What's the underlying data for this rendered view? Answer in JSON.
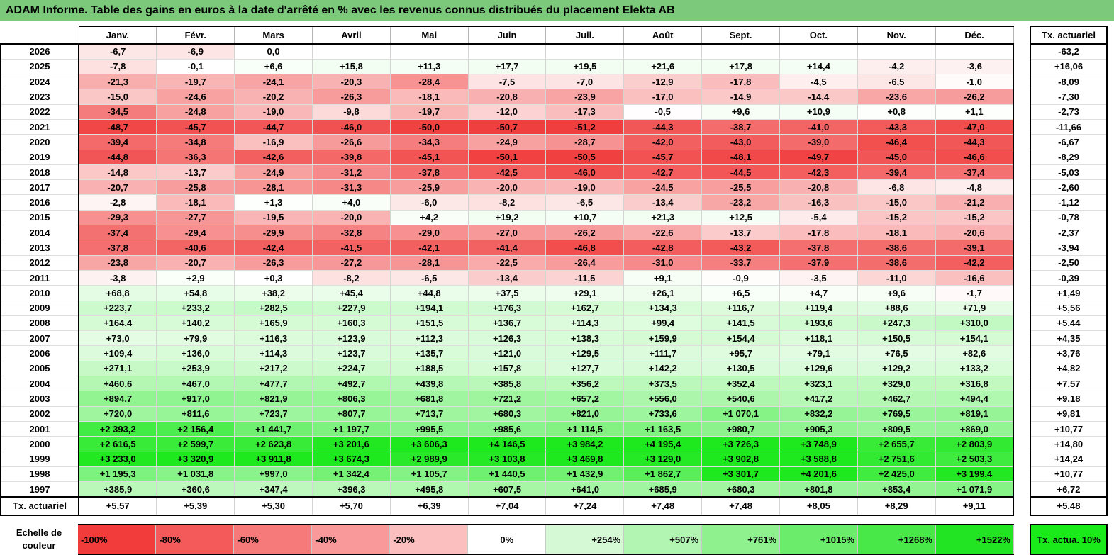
{
  "title": "ADAM Informe. Table des gains en euros à la date d'arrêté en % avec les revenus connus distribués du placement Elekta AB",
  "months": [
    "Janv.",
    "Févr.",
    "Mars",
    "Avril",
    "Mai",
    "Juin",
    "Juil.",
    "Août",
    "Sept.",
    "Oct.",
    "Nov.",
    "Déc."
  ],
  "side_header": "Tx. actuariel",
  "rows": [
    {
      "year": "2026",
      "values": [
        "-6,7",
        "-6,9",
        "0,0",
        "",
        "",
        "",
        "",
        "",
        "",
        "",
        "",
        ""
      ],
      "actuarial": "-63,2"
    },
    {
      "year": "2025",
      "values": [
        "-7,8",
        "-0,1",
        "+6,6",
        "+15,8",
        "+11,3",
        "+17,7",
        "+19,5",
        "+21,6",
        "+17,8",
        "+14,4",
        "-4,2",
        "-3,6"
      ],
      "actuarial": "+16,06"
    },
    {
      "year": "2024",
      "values": [
        "-21,3",
        "-19,7",
        "-24,1",
        "-20,3",
        "-28,4",
        "-7,5",
        "-7,0",
        "-12,9",
        "-17,8",
        "-4,5",
        "-6,5",
        "-1,0"
      ],
      "actuarial": "-8,09"
    },
    {
      "year": "2023",
      "values": [
        "-15,0",
        "-24,6",
        "-20,2",
        "-26,3",
        "-18,1",
        "-20,8",
        "-23,9",
        "-17,0",
        "-14,9",
        "-14,4",
        "-23,6",
        "-26,2"
      ],
      "actuarial": "-7,30"
    },
    {
      "year": "2022",
      "values": [
        "-34,5",
        "-24,8",
        "-19,0",
        "-9,8",
        "-19,7",
        "-12,0",
        "-17,3",
        "-0,5",
        "+9,6",
        "+10,9",
        "+0,8",
        "+1,1"
      ],
      "actuarial": "-2,73"
    },
    {
      "year": "2021",
      "values": [
        "-48,7",
        "-45,7",
        "-44,7",
        "-46,0",
        "-50,0",
        "-50,7",
        "-51,2",
        "-44,3",
        "-38,7",
        "-41,0",
        "-43,3",
        "-47,0"
      ],
      "actuarial": "-11,66"
    },
    {
      "year": "2020",
      "values": [
        "-39,4",
        "-34,8",
        "-16,9",
        "-26,6",
        "-34,3",
        "-24,9",
        "-28,7",
        "-42,0",
        "-43,0",
        "-39,0",
        "-46,4",
        "-44,3"
      ],
      "actuarial": "-6,67"
    },
    {
      "year": "2019",
      "values": [
        "-44,8",
        "-36,3",
        "-42,6",
        "-39,8",
        "-45,1",
        "-50,1",
        "-50,5",
        "-45,7",
        "-48,1",
        "-49,7",
        "-45,0",
        "-46,6"
      ],
      "actuarial": "-8,29"
    },
    {
      "year": "2018",
      "values": [
        "-14,8",
        "-13,7",
        "-24,9",
        "-31,2",
        "-37,8",
        "-42,5",
        "-46,0",
        "-42,7",
        "-44,5",
        "-42,3",
        "-39,4",
        "-37,4"
      ],
      "actuarial": "-5,03"
    },
    {
      "year": "2017",
      "values": [
        "-20,7",
        "-25,8",
        "-28,1",
        "-31,3",
        "-25,9",
        "-20,0",
        "-19,0",
        "-24,5",
        "-25,5",
        "-20,8",
        "-6,8",
        "-4,8"
      ],
      "actuarial": "-2,60"
    },
    {
      "year": "2016",
      "values": [
        "-2,8",
        "-18,1",
        "+1,3",
        "+4,0",
        "-6,0",
        "-8,2",
        "-6,5",
        "-13,4",
        "-23,2",
        "-16,3",
        "-15,0",
        "-21,2"
      ],
      "actuarial": "-1,12"
    },
    {
      "year": "2015",
      "values": [
        "-29,3",
        "-27,7",
        "-19,5",
        "-20,0",
        "+4,2",
        "+19,2",
        "+10,7",
        "+21,3",
        "+12,5",
        "-5,4",
        "-15,2",
        "-15,2"
      ],
      "actuarial": "-0,78"
    },
    {
      "year": "2014",
      "values": [
        "-37,4",
        "-29,4",
        "-29,9",
        "-32,8",
        "-29,0",
        "-27,0",
        "-26,2",
        "-22,6",
        "-13,7",
        "-17,8",
        "-18,1",
        "-20,6"
      ],
      "actuarial": "-2,37"
    },
    {
      "year": "2013",
      "values": [
        "-37,8",
        "-40,6",
        "-42,4",
        "-41,5",
        "-42,1",
        "-41,4",
        "-46,8",
        "-42,8",
        "-43,2",
        "-37,8",
        "-38,6",
        "-39,1"
      ],
      "actuarial": "-3,94"
    },
    {
      "year": "2012",
      "values": [
        "-23,8",
        "-20,7",
        "-26,3",
        "-27,2",
        "-28,1",
        "-22,5",
        "-26,4",
        "-31,0",
        "-33,7",
        "-37,9",
        "-38,6",
        "-42,2"
      ],
      "actuarial": "-2,50"
    },
    {
      "year": "2011",
      "values": [
        "-3,8",
        "+2,9",
        "+0,3",
        "-8,2",
        "-6,5",
        "-13,4",
        "-11,5",
        "+9,1",
        "-0,9",
        "-3,5",
        "-11,0",
        "-16,6"
      ],
      "actuarial": "-0,39"
    },
    {
      "year": "2010",
      "values": [
        "+68,8",
        "+54,8",
        "+38,2",
        "+45,4",
        "+44,8",
        "+37,5",
        "+29,1",
        "+26,1",
        "+6,5",
        "+4,7",
        "+9,6",
        "-1,7"
      ],
      "actuarial": "+1,49"
    },
    {
      "year": "2009",
      "values": [
        "+223,7",
        "+233,2",
        "+282,5",
        "+227,9",
        "+194,1",
        "+176,3",
        "+162,7",
        "+134,3",
        "+116,7",
        "+119,4",
        "+88,6",
        "+71,9"
      ],
      "actuarial": "+5,56"
    },
    {
      "year": "2008",
      "values": [
        "+164,4",
        "+140,2",
        "+165,9",
        "+160,3",
        "+151,5",
        "+136,7",
        "+114,3",
        "+99,4",
        "+141,5",
        "+193,6",
        "+247,3",
        "+310,0"
      ],
      "actuarial": "+5,44"
    },
    {
      "year": "2007",
      "values": [
        "+73,0",
        "+79,9",
        "+116,3",
        "+123,9",
        "+112,3",
        "+126,3",
        "+138,3",
        "+159,9",
        "+154,4",
        "+118,1",
        "+150,5",
        "+154,1"
      ],
      "actuarial": "+4,35"
    },
    {
      "year": "2006",
      "values": [
        "+109,4",
        "+136,0",
        "+114,3",
        "+123,7",
        "+135,7",
        "+121,0",
        "+129,5",
        "+111,7",
        "+95,7",
        "+79,1",
        "+76,5",
        "+82,6"
      ],
      "actuarial": "+3,76"
    },
    {
      "year": "2005",
      "values": [
        "+271,1",
        "+253,9",
        "+217,2",
        "+224,7",
        "+188,5",
        "+157,8",
        "+127,7",
        "+142,2",
        "+130,5",
        "+129,6",
        "+129,2",
        "+133,2"
      ],
      "actuarial": "+4,82"
    },
    {
      "year": "2004",
      "values": [
        "+460,6",
        "+467,0",
        "+477,7",
        "+492,7",
        "+439,8",
        "+385,8",
        "+356,2",
        "+373,5",
        "+352,4",
        "+323,1",
        "+329,0",
        "+316,8"
      ],
      "actuarial": "+7,57"
    },
    {
      "year": "2003",
      "values": [
        "+894,7",
        "+917,0",
        "+821,9",
        "+806,3",
        "+681,8",
        "+721,2",
        "+657,2",
        "+556,0",
        "+540,6",
        "+417,2",
        "+462,7",
        "+494,4"
      ],
      "actuarial": "+9,18"
    },
    {
      "year": "2002",
      "values": [
        "+720,0",
        "+811,6",
        "+723,7",
        "+807,7",
        "+713,7",
        "+680,3",
        "+821,0",
        "+733,6",
        "+1 070,1",
        "+832,2",
        "+769,5",
        "+819,1"
      ],
      "actuarial": "+9,81"
    },
    {
      "year": "2001",
      "values": [
        "+2 393,2",
        "+2 156,4",
        "+1 441,7",
        "+1 197,7",
        "+995,5",
        "+985,6",
        "+1 114,5",
        "+1 163,5",
        "+980,7",
        "+905,3",
        "+809,5",
        "+869,0"
      ],
      "actuarial": "+10,77"
    },
    {
      "year": "2000",
      "values": [
        "+2 616,5",
        "+2 599,7",
        "+2 623,8",
        "+3 201,6",
        "+3 606,3",
        "+4 146,5",
        "+3 984,2",
        "+4 195,4",
        "+3 726,3",
        "+3 748,9",
        "+2 655,7",
        "+2 803,9"
      ],
      "actuarial": "+14,80"
    },
    {
      "year": "1999",
      "values": [
        "+3 233,0",
        "+3 320,9",
        "+3 911,8",
        "+3 674,3",
        "+2 989,9",
        "+3 103,8",
        "+3 469,8",
        "+3 129,0",
        "+3 902,8",
        "+3 588,8",
        "+2 751,6",
        "+2 503,3"
      ],
      "actuarial": "+14,24"
    },
    {
      "year": "1998",
      "values": [
        "+1 195,3",
        "+1 031,8",
        "+997,0",
        "+1 342,4",
        "+1 105,7",
        "+1 440,5",
        "+1 432,9",
        "+1 862,7",
        "+3 301,7",
        "+4 201,6",
        "+2 425,0",
        "+3 199,4"
      ],
      "actuarial": "+10,77"
    },
    {
      "year": "1997",
      "values": [
        "+385,9",
        "+360,6",
        "+347,4",
        "+396,3",
        "+495,8",
        "+607,5",
        "+641,0",
        "+685,9",
        "+680,3",
        "+801,8",
        "+853,4",
        "+1 071,9"
      ],
      "actuarial": "+6,72"
    }
  ],
  "summary": {
    "label": "Tx. actuariel",
    "values": [
      "+5,57",
      "+5,39",
      "+5,30",
      "+5,70",
      "+6,39",
      "+7,04",
      "+7,24",
      "+7,48",
      "+7,48",
      "+8,05",
      "+8,29",
      "+9,11"
    ],
    "actuarial": "+5,48"
  },
  "scale": {
    "label": "Echelle de couleur",
    "items": [
      "-100%",
      "-80%",
      "-60%",
      "-40%",
      "-20%",
      "0%",
      "+254%",
      "+507%",
      "+761%",
      "+1015%",
      "+1268%",
      "+1522%"
    ],
    "colors": [
      "#f23b3b",
      "#f45a5a",
      "#f77a7a",
      "#f99999",
      "#fcbfbf",
      "#ffffff",
      "#d4f9d4",
      "#b2f4b2",
      "#8ef18e",
      "#6bec6b",
      "#47e847",
      "#23e423"
    ],
    "side_label": "Tx. actua. 10%"
  }
}
